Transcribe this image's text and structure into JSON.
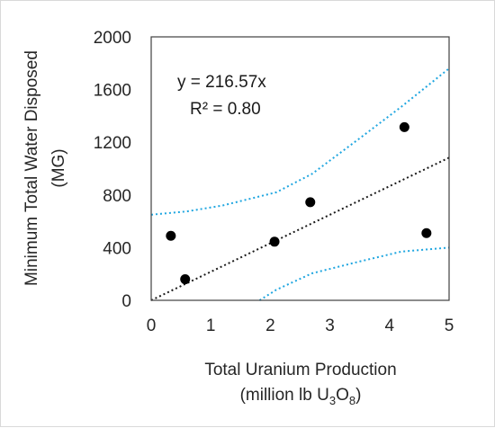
{
  "chart_data": {
    "type": "scatter",
    "title": "",
    "xlabel": {
      "line1": "Total Uranium Production",
      "line2_prefix": "(million lb U",
      "sub1": "3",
      "mid": "O",
      "sub2": "8",
      "suffix": ")"
    },
    "ylabel": {
      "line1": "Minimum Total Water Disposed",
      "line2": "(MG)"
    },
    "xlim": [
      0,
      5
    ],
    "ylim": [
      0,
      2000
    ],
    "xticks": [
      0,
      1,
      2,
      3,
      4,
      5
    ],
    "yticks": [
      0,
      400,
      800,
      1200,
      1600,
      2000
    ],
    "points": [
      {
        "x": 0.33,
        "y": 490
      },
      {
        "x": 0.57,
        "y": 160
      },
      {
        "x": 2.07,
        "y": 445
      },
      {
        "x": 2.67,
        "y": 745
      },
      {
        "x": 4.25,
        "y": 1315
      },
      {
        "x": 4.62,
        "y": 510
      }
    ],
    "trendline": {
      "slope": 216.57,
      "x": [
        0,
        5
      ]
    },
    "confidence_upper": [
      {
        "x": 0,
        "y": 650
      },
      {
        "x": 0.6,
        "y": 675
      },
      {
        "x": 1.2,
        "y": 720
      },
      {
        "x": 2.1,
        "y": 820
      },
      {
        "x": 2.7,
        "y": 960
      },
      {
        "x": 3.5,
        "y": 1230
      },
      {
        "x": 4.2,
        "y": 1470
      },
      {
        "x": 5,
        "y": 1760
      }
    ],
    "confidence_lower": [
      {
        "x": 1.82,
        "y": 0
      },
      {
        "x": 2.1,
        "y": 80
      },
      {
        "x": 2.7,
        "y": 205
      },
      {
        "x": 3.5,
        "y": 295
      },
      {
        "x": 4.2,
        "y": 370
      },
      {
        "x": 5,
        "y": 400
      }
    ],
    "annotations": {
      "equation": "y = 216.57x",
      "r_squared": "R² = 0.80"
    },
    "grid": false,
    "legend": "none",
    "colors": {
      "points": "#000000",
      "trendline": "#1a1a1a",
      "confidence": "#1fa6e0",
      "axis": "#404040",
      "text": "#262626"
    }
  }
}
